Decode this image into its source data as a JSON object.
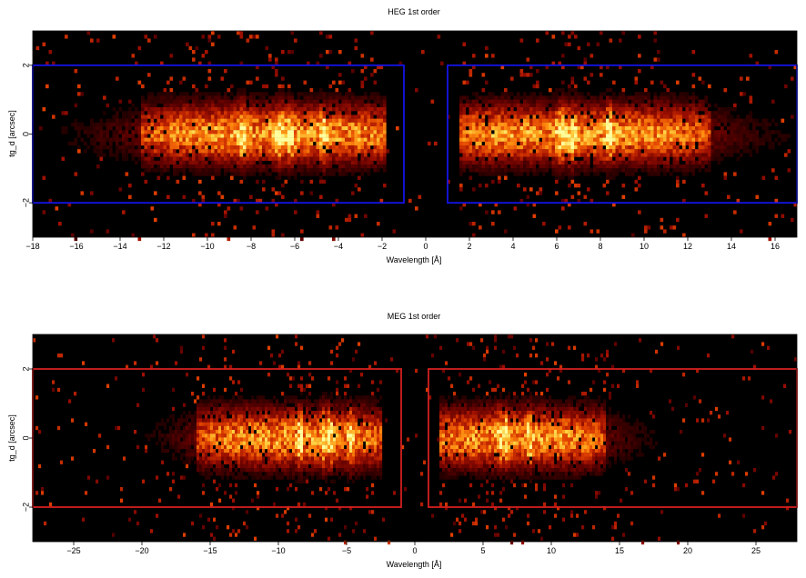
{
  "chart_data": [
    {
      "type": "heatmap",
      "title": "HEG 1st order",
      "xlabel": "Wavelength [Å]",
      "ylabel": "tg_d [arcsec]",
      "xlim": [
        -18,
        17
      ],
      "ylim": [
        -3,
        3
      ],
      "xticks": [
        -18,
        -16,
        -14,
        -12,
        -10,
        -8,
        -6,
        -4,
        -2,
        0,
        2,
        4,
        6,
        8,
        10,
        12,
        14,
        16
      ],
      "xtick_labels": [
        "−18",
        "−16",
        "−14",
        "−12",
        "−10",
        "−8",
        "−6",
        "−4",
        "−2",
        "0",
        "2",
        "4",
        "6",
        "8",
        "10",
        "12",
        "14",
        "16"
      ],
      "yticks": [
        -2,
        0,
        2
      ],
      "ytick_labels": [
        "−2",
        "0",
        "2"
      ],
      "regions": [
        {
          "x": [
            -18,
            -1
          ],
          "y": [
            -2,
            2
          ]
        },
        {
          "x": [
            1,
            17
          ],
          "y": [
            -2,
            2
          ]
        }
      ],
      "region_color": "#1414e6",
      "emission": {
        "left": [
          -13,
          -1.8
        ],
        "right": [
          1.5,
          13
        ],
        "y_sigma": 0.55,
        "lines": [
          -8.4,
          -6.7,
          -6.2,
          -4.7,
          6.2,
          6.7,
          8.4
        ]
      },
      "background": "#000000",
      "colormap": [
        "#000000",
        "#5a0000",
        "#a01000",
        "#e04000",
        "#ff8c10",
        "#ffd040",
        "#ffffa0"
      ]
    },
    {
      "type": "heatmap",
      "title": "MEG 1st order",
      "xlabel": "Wavelength [Å]",
      "ylabel": "tg_d [arcsec]",
      "xlim": [
        -28,
        28
      ],
      "ylim": [
        -3,
        3
      ],
      "xticks": [
        -25,
        -20,
        -15,
        -10,
        -5,
        0,
        5,
        10,
        15,
        20,
        25
      ],
      "xtick_labels": [
        "−25",
        "−20",
        "−15",
        "−10",
        "−5",
        "0",
        "5",
        "10",
        "15",
        "20",
        "25"
      ],
      "yticks": [
        -2,
        0,
        2
      ],
      "ytick_labels": [
        "−2",
        "0",
        "2"
      ],
      "regions": [
        {
          "x": [
            -28,
            -1
          ],
          "y": [
            -2,
            2
          ]
        },
        {
          "x": [
            1,
            28
          ],
          "y": [
            -2,
            2
          ]
        }
      ],
      "region_color": "#d42020",
      "emission": {
        "left": [
          -16,
          -2.5
        ],
        "right": [
          1.8,
          14
        ],
        "y_sigma": 0.55,
        "lines": [
          -8.4,
          -6.7,
          -6.2,
          -4.7,
          6.2,
          6.7,
          8.4
        ]
      },
      "background": "#000000",
      "colormap": [
        "#000000",
        "#5a0000",
        "#a01000",
        "#e04000",
        "#ff8c10",
        "#ffd040",
        "#ffffa0"
      ]
    }
  ]
}
